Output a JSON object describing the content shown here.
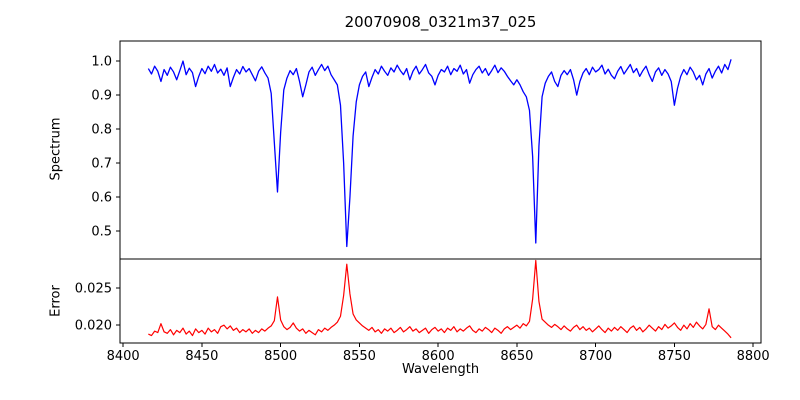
{
  "figure": {
    "title": "20070908_0321m37_025",
    "xlabel": "Wavelength",
    "ylabel_top": "Spectrum",
    "ylabel_bottom": "Error",
    "background_color": "#ffffff",
    "axis_color": "#000000"
  },
  "chart_data": [
    {
      "type": "line",
      "panel": "top",
      "series_name": "spectrum",
      "color": "#0000ff",
      "xlim": [
        8398,
        8805
      ],
      "ylim": [
        0.418,
        1.059
      ],
      "ytick_values": [
        0.5,
        0.6,
        0.7,
        0.8,
        0.9,
        1.0
      ],
      "ytick_labels": [
        "0.5",
        "0.6",
        "0.7",
        "0.8",
        "0.9",
        "1.0"
      ],
      "x_start": 8416,
      "x_step": 2,
      "absorption_lines": [
        {
          "wavelength": 8498,
          "min_flux": 0.615
        },
        {
          "wavelength": 8542,
          "min_flux": 0.455
        },
        {
          "wavelength": 8662,
          "min_flux": 0.465
        }
      ],
      "values": [
        0.978,
        0.962,
        0.985,
        0.97,
        0.94,
        0.975,
        0.958,
        0.982,
        0.968,
        0.945,
        0.972,
        1.0,
        0.96,
        0.979,
        0.966,
        0.925,
        0.955,
        0.978,
        0.963,
        0.985,
        0.97,
        0.99,
        0.965,
        0.976,
        0.958,
        0.98,
        0.925,
        0.952,
        0.975,
        0.962,
        0.984,
        0.968,
        0.978,
        0.96,
        0.942,
        0.97,
        0.983,
        0.965,
        0.95,
        0.905,
        0.76,
        0.615,
        0.79,
        0.915,
        0.95,
        0.972,
        0.96,
        0.978,
        0.94,
        0.895,
        0.93,
        0.968,
        0.982,
        0.958,
        0.975,
        0.99,
        0.972,
        0.985,
        0.96,
        0.945,
        0.93,
        0.87,
        0.7,
        0.455,
        0.6,
        0.78,
        0.88,
        0.93,
        0.955,
        0.968,
        0.925,
        0.952,
        0.975,
        0.962,
        0.985,
        0.97,
        0.958,
        0.98,
        0.968,
        0.988,
        0.972,
        0.96,
        0.978,
        0.945,
        0.97,
        0.985,
        0.962,
        0.975,
        0.99,
        0.965,
        0.955,
        0.93,
        0.958,
        0.975,
        0.968,
        0.985,
        0.96,
        0.978,
        0.97,
        0.988,
        0.962,
        0.975,
        0.935,
        0.96,
        0.975,
        0.985,
        0.965,
        0.978,
        0.958,
        0.972,
        0.988,
        0.966,
        0.98,
        0.97,
        0.955,
        0.942,
        0.93,
        0.945,
        0.93,
        0.91,
        0.895,
        0.855,
        0.72,
        0.465,
        0.75,
        0.895,
        0.935,
        0.955,
        0.968,
        0.94,
        0.925,
        0.958,
        0.972,
        0.96,
        0.975,
        0.945,
        0.9,
        0.94,
        0.965,
        0.978,
        0.96,
        0.982,
        0.968,
        0.975,
        0.988,
        0.962,
        0.976,
        0.958,
        0.948,
        0.97,
        0.984,
        0.962,
        0.976,
        0.99,
        0.966,
        0.978,
        0.955,
        0.972,
        0.985,
        0.96,
        0.94,
        0.968,
        0.98,
        0.958,
        0.975,
        0.962,
        0.94,
        0.87,
        0.92,
        0.955,
        0.975,
        0.96,
        0.982,
        0.968,
        0.945,
        0.958,
        0.93,
        0.962,
        0.978,
        0.95,
        0.97,
        0.985,
        0.965,
        0.99,
        0.975,
        1.005
      ]
    },
    {
      "type": "line",
      "panel": "bottom",
      "series_name": "error",
      "color": "#ff0000",
      "xlim": [
        8398,
        8805
      ],
      "ylim": [
        0.0176,
        0.0289
      ],
      "ytick_values": [
        0.02,
        0.025
      ],
      "ytick_labels": [
        "0.020",
        "0.025"
      ],
      "x_start": 8416,
      "x_step": 2,
      "error_peaks": [
        {
          "wavelength": 8498,
          "max_error": 0.0238
        },
        {
          "wavelength": 8542,
          "max_error": 0.0282
        },
        {
          "wavelength": 8662,
          "max_error": 0.0287
        }
      ],
      "values": [
        0.0188,
        0.0186,
        0.0192,
        0.019,
        0.0202,
        0.0191,
        0.0189,
        0.0194,
        0.0187,
        0.0193,
        0.019,
        0.0196,
        0.0188,
        0.0192,
        0.0186,
        0.0195,
        0.019,
        0.0193,
        0.0188,
        0.0196,
        0.0191,
        0.0194,
        0.0189,
        0.0198,
        0.02,
        0.0195,
        0.0199,
        0.0193,
        0.0196,
        0.019,
        0.0194,
        0.0191,
        0.0195,
        0.0189,
        0.0193,
        0.019,
        0.0195,
        0.0192,
        0.0196,
        0.0199,
        0.0206,
        0.0238,
        0.0207,
        0.0198,
        0.0194,
        0.0197,
        0.0203,
        0.0196,
        0.0192,
        0.0195,
        0.0189,
        0.0193,
        0.019,
        0.0187,
        0.0194,
        0.0191,
        0.0196,
        0.0193,
        0.0197,
        0.02,
        0.0204,
        0.0212,
        0.024,
        0.0282,
        0.0242,
        0.0215,
        0.0207,
        0.0203,
        0.0199,
        0.0196,
        0.0193,
        0.0197,
        0.0191,
        0.0194,
        0.0189,
        0.0195,
        0.0192,
        0.0196,
        0.019,
        0.0193,
        0.0197,
        0.0191,
        0.0194,
        0.0198,
        0.0192,
        0.0195,
        0.019,
        0.0193,
        0.0196,
        0.0189,
        0.0194,
        0.0197,
        0.0192,
        0.0195,
        0.019,
        0.0196,
        0.0193,
        0.0198,
        0.0191,
        0.0195,
        0.0192,
        0.0196,
        0.0199,
        0.0193,
        0.019,
        0.0195,
        0.0192,
        0.0197,
        0.0194,
        0.019,
        0.0196,
        0.0193,
        0.0189,
        0.0195,
        0.0198,
        0.0194,
        0.0197,
        0.02,
        0.0196,
        0.0202,
        0.0199,
        0.0205,
        0.0235,
        0.0287,
        0.0232,
        0.0208,
        0.0204,
        0.02,
        0.0197,
        0.0201,
        0.0198,
        0.0194,
        0.0199,
        0.0195,
        0.0192,
        0.0197,
        0.02,
        0.0194,
        0.0198,
        0.0193,
        0.0196,
        0.0191,
        0.0195,
        0.0199,
        0.0194,
        0.019,
        0.0196,
        0.0192,
        0.0197,
        0.0193,
        0.0198,
        0.0194,
        0.019,
        0.0196,
        0.0199,
        0.0193,
        0.0197,
        0.0191,
        0.0195,
        0.02,
        0.0196,
        0.0192,
        0.0198,
        0.0194,
        0.0201,
        0.0196,
        0.0199,
        0.0203,
        0.0197,
        0.0193,
        0.02,
        0.0195,
        0.0202,
        0.0197,
        0.0204,
        0.0199,
        0.0195,
        0.0201,
        0.0222,
        0.0198,
        0.0194,
        0.02,
        0.0196,
        0.0192,
        0.0188,
        0.0183
      ]
    }
  ],
  "x_axis": {
    "tick_values": [
      8400,
      8450,
      8500,
      8550,
      8600,
      8650,
      8700,
      8750,
      8800
    ],
    "tick_labels": [
      "8400",
      "8450",
      "8500",
      "8550",
      "8600",
      "8650",
      "8700",
      "8750",
      "8800"
    ]
  }
}
